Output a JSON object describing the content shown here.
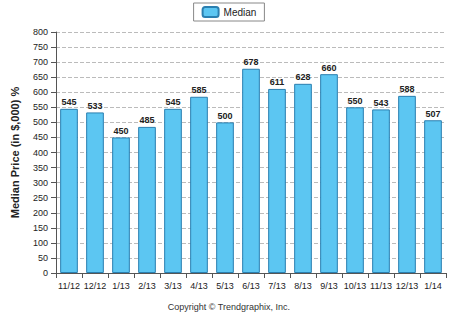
{
  "chart_data": {
    "type": "bar",
    "y_label": "Median Price (in $,000) %",
    "categories": [
      "11/12",
      "12/12",
      "1/13",
      "2/13",
      "3/13",
      "4/13",
      "5/13",
      "6/13",
      "7/13",
      "8/13",
      "9/13",
      "10/13",
      "11/13",
      "12/13",
      "1/14"
    ],
    "series": [
      {
        "name": "Median",
        "color": "#5cc6f2",
        "values": [
          545,
          533,
          450,
          485,
          545,
          585,
          500,
          678,
          611,
          628,
          660,
          550,
          543,
          588,
          507
        ]
      }
    ],
    "ylim": [
      0,
      800
    ],
    "yticks": [
      0,
      50,
      100,
      150,
      200,
      250,
      300,
      350,
      400,
      450,
      500,
      550,
      600,
      650,
      700,
      750,
      800
    ],
    "grid": true,
    "legend": "top",
    "data_labels": true,
    "annotations": [
      "Copyright © Trendgraphix, Inc."
    ]
  }
}
